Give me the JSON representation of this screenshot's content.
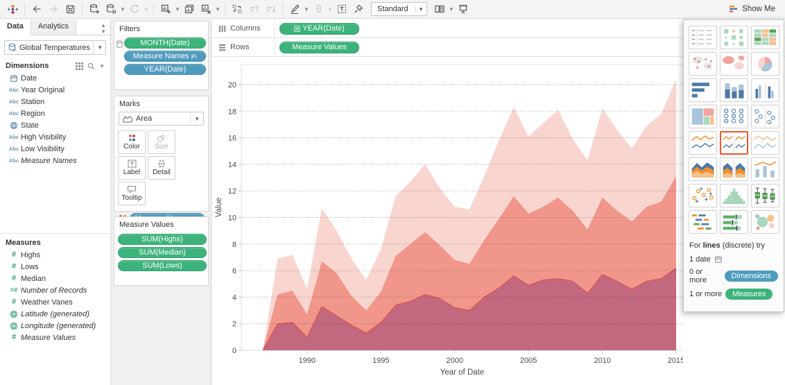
{
  "toolbar": {
    "items": [
      {
        "name": "tableau-logo-icon"
      },
      {
        "sep": true
      },
      {
        "name": "undo-icon"
      },
      {
        "name": "redo-icon",
        "disabled": true
      },
      {
        "name": "save-icon"
      },
      {
        "sep": true
      },
      {
        "name": "new-data-source-icon"
      },
      {
        "name": "pause-auto-updates-icon",
        "caret": true
      },
      {
        "name": "run-update-icon",
        "disabled": true,
        "caret": true
      },
      {
        "sep": true
      },
      {
        "name": "new-worksheet-icon",
        "caret": true
      },
      {
        "name": "duplicate-sheet-icon"
      },
      {
        "name": "clear-sheet-icon",
        "caret": true
      },
      {
        "sep": true
      },
      {
        "name": "swap-rows-columns-icon"
      },
      {
        "name": "sort-ascending-icon",
        "disabled": true
      },
      {
        "name": "sort-descending-icon",
        "disabled": true
      },
      {
        "sep": true
      },
      {
        "name": "highlight-icon",
        "caret": true
      },
      {
        "name": "group-members-icon",
        "disabled": true,
        "caret": true
      },
      {
        "name": "text-label-icon"
      },
      {
        "name": "fix-axes-icon"
      },
      {
        "select": true,
        "name": "fit-select"
      },
      {
        "name": "show-hide-cards-icon",
        "caret": true
      },
      {
        "name": "presentation-mode-icon"
      }
    ],
    "fit_label": "Standard",
    "show_me_label": "Show Me"
  },
  "sidebar": {
    "tabs": [
      {
        "label": "Data",
        "active": true
      },
      {
        "label": "Analytics",
        "active": false
      }
    ],
    "datasource": {
      "name": "Global Temperatures"
    },
    "dimensions": {
      "title": "Dimensions",
      "fields": [
        {
          "label": "Date",
          "icon": "calendar-icon"
        },
        {
          "label": "Year Original",
          "icon": "abc-icon"
        },
        {
          "label": "Station",
          "icon": "abc-icon"
        },
        {
          "label": "Region",
          "icon": "abc-icon"
        },
        {
          "label": "State",
          "icon": "globe-icon"
        },
        {
          "label": "High Visibility",
          "icon": "abc-icon"
        },
        {
          "label": "Low Visibility",
          "icon": "abc-icon"
        },
        {
          "label": "Measure Names",
          "icon": "abc-icon",
          "italic": true
        }
      ]
    },
    "measures": {
      "title": "Measures",
      "fields": [
        {
          "label": "Highs",
          "icon": "hash-icon"
        },
        {
          "label": "Lows",
          "icon": "hash-icon"
        },
        {
          "label": "Median",
          "icon": "hash-icon"
        },
        {
          "label": "Number of Records",
          "icon": "hash-equals-icon",
          "italic": true
        },
        {
          "label": "Weather Vanes",
          "icon": "hash-icon"
        },
        {
          "label": "Latitude (generated)",
          "icon": "globe-green-icon",
          "italic": true
        },
        {
          "label": "Longitude (generated)",
          "icon": "globe-green-icon",
          "italic": true
        },
        {
          "label": "Measure Values",
          "icon": "hash-icon",
          "italic": true
        }
      ]
    }
  },
  "filters": {
    "title": "Filters",
    "pills": [
      {
        "label": "MONTH(Date)",
        "color": "green"
      },
      {
        "label": "Measure Names",
        "color": "blue",
        "right_icon": "sort-icon"
      },
      {
        "label": "YEAR(Date)",
        "color": "blue"
      }
    ]
  },
  "marks": {
    "title": "Marks",
    "type_label": "Area",
    "buttons": [
      {
        "label": "Color",
        "icon": "color-icon"
      },
      {
        "label": "Size",
        "icon": "size-icon",
        "disabled": true
      },
      {
        "label": "Label",
        "icon": "label-icon"
      },
      {
        "label": "Detail",
        "icon": "detail-icon"
      },
      {
        "label": "Tooltip",
        "icon": "tooltip-icon"
      }
    ],
    "pill": {
      "label": "Measure Names",
      "color": "blue",
      "right_icon": "sort-icon"
    }
  },
  "measure_values": {
    "title": "Measure Values",
    "pills": [
      {
        "label": "SUM(Highs)",
        "color": "green"
      },
      {
        "label": "SUM(Median)",
        "color": "green"
      },
      {
        "label": "SUM(Lows)",
        "color": "green"
      }
    ]
  },
  "shelves": {
    "columns": {
      "label": "Columns",
      "pills": [
        {
          "label": "YEAR(Date)",
          "color": "green",
          "left_icon": "plus-box-icon"
        }
      ]
    },
    "rows": {
      "label": "Rows",
      "pills": [
        {
          "label": "Measure Values",
          "color": "green"
        }
      ]
    }
  },
  "show_me": {
    "items": [
      {
        "name": "text-table"
      },
      {
        "name": "heat-map"
      },
      {
        "name": "highlight-table"
      },
      {
        "name": "symbol-map"
      },
      {
        "name": "filled-map"
      },
      {
        "name": "pie-chart"
      },
      {
        "name": "horizontal-bars"
      },
      {
        "name": "stacked-bars"
      },
      {
        "name": "side-by-side-bars"
      },
      {
        "name": "treemap"
      },
      {
        "name": "circle-views"
      },
      {
        "name": "side-by-side-circles"
      },
      {
        "name": "lines-continuous"
      },
      {
        "name": "lines-discrete",
        "selected": true
      },
      {
        "name": "dual-lines"
      },
      {
        "name": "area-continuous"
      },
      {
        "name": "area-discrete"
      },
      {
        "name": "dual-combination"
      },
      {
        "name": "scatter-plot"
      },
      {
        "name": "histogram"
      },
      {
        "name": "box-and-whisker"
      },
      {
        "name": "gantt"
      },
      {
        "name": "bullet-graph"
      },
      {
        "name": "packed-bubbles"
      }
    ],
    "hint_prefix": "For ",
    "hint_bold": "lines",
    "hint_suffix": " (discrete) try",
    "requirements": [
      {
        "text": "1 date",
        "icon": "calendar-icon"
      },
      {
        "text": "0 or more",
        "pill": "Dimensions",
        "pill_color": "blue"
      },
      {
        "text": "1 or more",
        "pill": "Measures",
        "pill_color": "green"
      }
    ]
  },
  "colors": {
    "pill_green": "#3cb37a",
    "pill_blue": "#4f9bbd",
    "selected_border": "#e8552e",
    "area_highs": "#f9d5d0",
    "area_median": "#f0968a",
    "area_lows": "#c2697f",
    "lows_edge": "#d94f44"
  },
  "chart_data": {
    "type": "area",
    "overlapping": true,
    "xlabel": "Year of Date",
    "ylabel": "Value",
    "x": [
      1987,
      1988,
      1989,
      1990,
      1991,
      1992,
      1993,
      1994,
      1995,
      1996,
      1997,
      1998,
      1999,
      2000,
      2001,
      2002,
      2003,
      2004,
      2005,
      2006,
      2007,
      2008,
      2009,
      2010,
      2011,
      2012,
      2013,
      2014,
      2015
    ],
    "series": [
      {
        "name": "Highs",
        "color": "#f9d5d0",
        "values": [
          0,
          6.9,
          7.2,
          4.6,
          10.7,
          9.0,
          6.9,
          5.3,
          7.6,
          11.6,
          12.7,
          14.0,
          12.2,
          10.8,
          10.6,
          13.1,
          15.8,
          18.3,
          16.1,
          17.1,
          18.1,
          15.9,
          14.3,
          18.2,
          16.6,
          15.2,
          16.9,
          17.8,
          20.4
        ]
      },
      {
        "name": "Median",
        "color": "#f0968a",
        "values": [
          0,
          4.2,
          4.5,
          2.7,
          6.7,
          5.8,
          4.1,
          3.0,
          4.4,
          7.1,
          8.0,
          8.9,
          7.9,
          6.8,
          6.5,
          8.3,
          9.9,
          11.6,
          10.3,
          10.8,
          11.5,
          10.5,
          9.1,
          11.5,
          10.5,
          9.7,
          10.8,
          11.2,
          13.1
        ]
      },
      {
        "name": "Lows",
        "color": "#c2697f",
        "edge_color": "#d94f44",
        "values": [
          0,
          2.0,
          2.1,
          1.0,
          3.3,
          2.6,
          1.9,
          1.3,
          2.1,
          3.4,
          3.7,
          4.2,
          3.9,
          3.2,
          3.0,
          4.0,
          4.7,
          5.6,
          4.9,
          5.3,
          5.4,
          5.2,
          4.3,
          5.7,
          5.2,
          4.6,
          5.2,
          5.4,
          6.2
        ]
      }
    ],
    "ylim": [
      0,
      21.5
    ],
    "yticks": [
      0,
      2,
      4,
      6,
      8,
      10,
      12,
      14,
      16,
      18,
      20
    ],
    "xticks": [
      1990,
      1995,
      2000,
      2005,
      2010,
      2015
    ],
    "grid": "dotted-horizontal",
    "legend": "none"
  }
}
